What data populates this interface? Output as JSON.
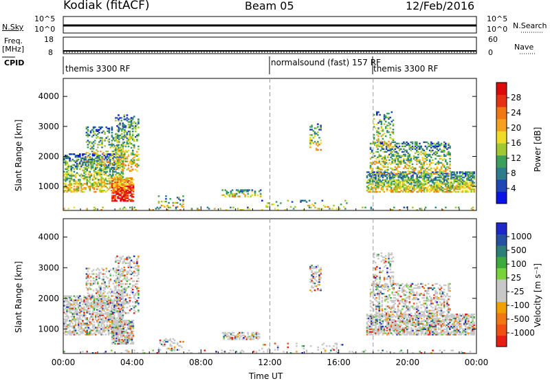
{
  "header": {
    "station": "Kodiak (fitACF)",
    "beam": "Beam 05",
    "date": "12/Feb/2016"
  },
  "aux": {
    "nsky_label": "N.Sky",
    "nsky_ticks": [
      "10^5",
      "10^0"
    ],
    "nsearch_label": "N.Search",
    "nsearch_ticks": [
      "10^5",
      "10^0"
    ],
    "freq_label": "Freq.",
    "freq_unit": "[MHz]",
    "freq_ticks": [
      "18",
      "8"
    ],
    "nave_label": "Nave",
    "nave_ticks": [
      "60",
      "0"
    ],
    "cpid_label": "CPID",
    "cpid_segments": [
      {
        "label": "themis 3300 RF",
        "start": "00:00"
      },
      {
        "label": "normalsound (fast) 157 RF",
        "start": "12:00"
      },
      {
        "label": "themis 3300 RF",
        "start": "18:00"
      }
    ]
  },
  "chart_data": [
    {
      "type": "heatmap",
      "title": "Power",
      "ylabel": "Slant Range [km]",
      "xlabel": "",
      "x_ticks": [
        "00:00",
        "04:00",
        "08:00",
        "12:00",
        "16:00",
        "20:00",
        "00:00"
      ],
      "y_ticks": [
        "1000",
        "2000",
        "3000",
        "4000"
      ],
      "ylim": [
        200,
        4600
      ],
      "colorbar": {
        "label": "Power [dB]",
        "ticks": [
          "4",
          "8",
          "12",
          "16",
          "20",
          "24",
          "28"
        ],
        "colors": [
          "#0a14e6",
          "#1e46b4",
          "#2d7d8c",
          "#3ca05a",
          "#a0c832",
          "#f0dc28",
          "#f5a01e",
          "#f07814",
          "#e63214",
          "#dc0a0a"
        ]
      }
    },
    {
      "type": "heatmap",
      "title": "Velocity",
      "ylabel": "Slant Range [km]",
      "xlabel": "Time UT",
      "x_ticks": [
        "00:00",
        "04:00",
        "08:00",
        "12:00",
        "16:00",
        "20:00",
        "00:00"
      ],
      "y_ticks": [
        "1000",
        "2000",
        "3000",
        "4000"
      ],
      "ylim": [
        200,
        4600
      ],
      "colorbar": {
        "label": "Velocity [m s⁻¹]",
        "ticks": [
          "1000",
          "500",
          "100",
          "25",
          "-25",
          "-100",
          "-500",
          "-1000"
        ],
        "colors": [
          "#1e28c8",
          "#2850a0",
          "#2d7d78",
          "#3caa3c",
          "#78d23c",
          "#c8c8c8",
          "#c8c8c8",
          "#f0a000",
          "#f07814",
          "#f05014",
          "#e61e14"
        ]
      }
    }
  ]
}
